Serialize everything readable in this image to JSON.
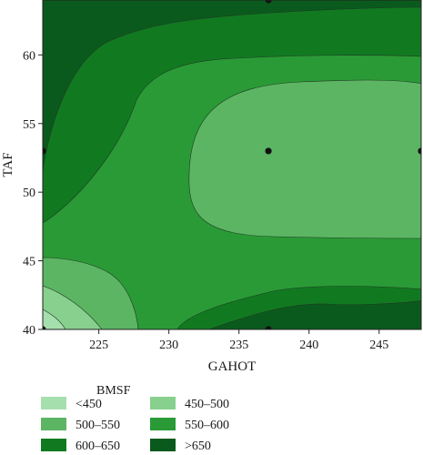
{
  "chart_data": {
    "type": "contour",
    "xlabel": "GAHOT",
    "ylabel": "TAF",
    "xlim": [
      221,
      248
    ],
    "ylim": [
      40,
      64
    ],
    "x_ticks": [
      225,
      230,
      235,
      240,
      245
    ],
    "y_ticks": [
      40,
      45,
      50,
      55,
      60
    ],
    "legend_title": "BMSF",
    "levels": [
      {
        "label": "<450",
        "color": "#a6dfae"
      },
      {
        "label": "450–500",
        "color": "#88d08d"
      },
      {
        "label": "500–550",
        "color": "#5cb563"
      },
      {
        "label": "550–600",
        "color": "#2a9a36"
      },
      {
        "label": "600–650",
        "color": "#117a21"
      },
      {
        "label": ">650",
        "color": "#0b5a1d"
      }
    ],
    "design_points": [
      {
        "x": 221,
        "y": 40
      },
      {
        "x": 221,
        "y": 53
      },
      {
        "x": 237.1,
        "y": 53
      },
      {
        "x": 237.1,
        "y": 40
      },
      {
        "x": 248,
        "y": 53
      },
      {
        "x": 237.1,
        "y": 64
      }
    ]
  }
}
